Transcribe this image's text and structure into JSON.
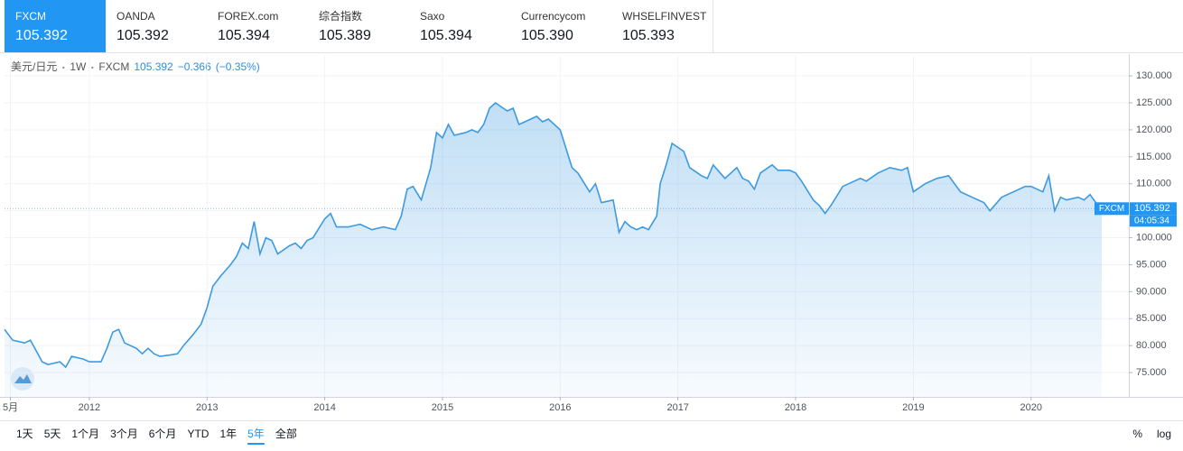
{
  "tabs": [
    {
      "name": "FXCM",
      "price": "105.392"
    },
    {
      "name": "OANDA",
      "price": "105.392"
    },
    {
      "name": "FOREX.com",
      "price": "105.394"
    },
    {
      "name": "综合指数",
      "price": "105.389"
    },
    {
      "name": "Saxo",
      "price": "105.394"
    },
    {
      "name": "Currencycom",
      "price": "105.390"
    },
    {
      "name": "WHSELFINVEST",
      "price": "105.393"
    }
  ],
  "active_tab": 0,
  "header": {
    "symbol": "美元/日元",
    "interval": "1W",
    "source": "FXCM",
    "price": "105.392",
    "change": "−0.366",
    "change_pct": "(−0.35%)"
  },
  "chart_data": {
    "type": "area",
    "color": "#3d9ae0",
    "grid": true,
    "countdown": "04:05:34",
    "x": [
      2011.28,
      2011.35,
      2011.45,
      2011.5,
      2011.6,
      2011.65,
      2011.75,
      2011.8,
      2011.85,
      2011.95,
      2012.0,
      2012.1,
      2012.15,
      2012.2,
      2012.25,
      2012.3,
      2012.4,
      2012.45,
      2012.5,
      2012.55,
      2012.6,
      2012.7,
      2012.75,
      2012.8,
      2012.88,
      2012.95,
      2013.0,
      2013.05,
      2013.12,
      2013.2,
      2013.25,
      2013.3,
      2013.35,
      2013.4,
      2013.45,
      2013.5,
      2013.55,
      2013.6,
      2013.7,
      2013.75,
      2013.8,
      2013.85,
      2013.9,
      2014.0,
      2014.05,
      2014.1,
      2014.2,
      2014.3,
      2014.4,
      2014.5,
      2014.6,
      2014.65,
      2014.7,
      2014.75,
      2014.82,
      2014.9,
      2014.95,
      2015.0,
      2015.05,
      2015.1,
      2015.2,
      2015.25,
      2015.3,
      2015.35,
      2015.4,
      2015.45,
      2015.55,
      2015.6,
      2015.65,
      2015.7,
      2015.8,
      2015.85,
      2015.9,
      2016.0,
      2016.1,
      2016.15,
      2016.25,
      2016.3,
      2016.35,
      2016.45,
      2016.5,
      2016.55,
      2016.6,
      2016.65,
      2016.7,
      2016.75,
      2016.82,
      2016.85,
      2016.9,
      2016.95,
      2017.05,
      2017.1,
      2017.2,
      2017.25,
      2017.3,
      2017.4,
      2017.5,
      2017.55,
      2017.6,
      2017.65,
      2017.7,
      2017.8,
      2017.85,
      2017.95,
      2018.0,
      2018.05,
      2018.15,
      2018.2,
      2018.25,
      2018.3,
      2018.4,
      2018.45,
      2018.55,
      2018.6,
      2018.7,
      2018.8,
      2018.9,
      2018.95,
      2019.0,
      2019.1,
      2019.2,
      2019.3,
      2019.4,
      2019.5,
      2019.6,
      2019.65,
      2019.75,
      2019.85,
      2019.95,
      2020.0,
      2020.1,
      2020.15,
      2020.2,
      2020.25,
      2020.3,
      2020.4,
      2020.45,
      2020.5,
      2020.55,
      2020.6
    ],
    "values": [
      83,
      81,
      80.5,
      81,
      77,
      76.5,
      77,
      76,
      78,
      77.5,
      77,
      77,
      79.5,
      82.5,
      83,
      80.5,
      79.5,
      78.5,
      79.5,
      78.5,
      78,
      78.3,
      78.5,
      80,
      82,
      84,
      87,
      91,
      93,
      95,
      96.5,
      99,
      98,
      103,
      97,
      100,
      99.5,
      97,
      98.5,
      99,
      98,
      99.5,
      100,
      103.5,
      104.5,
      102,
      102,
      102.5,
      101.5,
      102,
      101.5,
      104,
      109,
      109.5,
      107,
      113,
      119.5,
      118.5,
      121,
      119,
      119.5,
      120,
      119.5,
      121,
      124,
      125,
      123.5,
      124,
      121,
      121.5,
      122.5,
      121.5,
      122,
      120,
      113,
      112,
      108.5,
      110,
      106.5,
      107,
      101,
      103,
      102,
      101.5,
      102,
      101.5,
      104,
      110,
      113.5,
      117.5,
      116,
      113,
      111.5,
      111,
      113.5,
      111,
      113,
      111,
      110.5,
      109,
      112,
      113.5,
      112.5,
      112.5,
      112,
      110.5,
      107,
      106,
      104.5,
      106,
      109.5,
      110,
      111,
      110.5,
      112,
      113,
      112.5,
      113,
      108.5,
      110,
      111,
      111.5,
      108.5,
      107.5,
      106.5,
      105,
      107.5,
      108.5,
      109.5,
      109.5,
      108.5,
      111.5,
      105,
      107.5,
      107,
      107.5,
      107,
      108,
      106.5,
      105.392
    ],
    "xlim": [
      2011.28,
      2020.83
    ],
    "xticks": [
      {
        "value": 2011.33,
        "label": "5月"
      },
      2012,
      2013,
      2014,
      2015,
      2016,
      2017,
      2018,
      2019,
      2020
    ],
    "ylim": [
      70.5,
      133.7
    ],
    "yticks": [
      {
        "value": 75,
        "label": "75.000"
      },
      {
        "value": 80,
        "label": "80.000"
      },
      {
        "value": 85,
        "label": "85.000"
      },
      {
        "value": 90,
        "label": "90.000"
      },
      {
        "value": 95,
        "label": "95.000"
      },
      {
        "value": 100,
        "label": "100.000"
      },
      {
        "value": 105,
        "label": "105.000"
      },
      {
        "value": 110,
        "label": "110.000"
      },
      {
        "value": 115,
        "label": "115.000"
      },
      {
        "value": 120,
        "label": "120.000"
      },
      {
        "value": 125,
        "label": "125.000"
      },
      {
        "value": 130,
        "label": "130.000"
      }
    ]
  },
  "ranges": [
    "1天",
    "5天",
    "1个月",
    "3个月",
    "6个月",
    "YTD",
    "1年",
    "5年",
    "全部"
  ],
  "active_range": 7,
  "scale_options": [
    "%",
    "log"
  ]
}
